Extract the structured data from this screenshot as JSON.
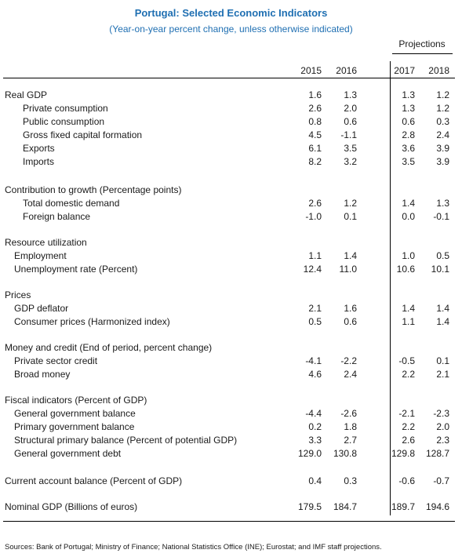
{
  "title": "Portugal: Selected Economic Indicators",
  "subtitle": "(Year-on-year percent change, unless otherwise indicated)",
  "projections_label": "Projections",
  "years": [
    "2015",
    "2016",
    "2017",
    "2018"
  ],
  "rows": [
    {
      "label": "Real GDP",
      "level": 0,
      "values": [
        "1.6",
        "1.3",
        "1.3",
        "1.2"
      ]
    },
    {
      "label": "Private consumption",
      "level": 2,
      "values": [
        "2.6",
        "2.0",
        "1.3",
        "1.2"
      ]
    },
    {
      "label": "Public consumption",
      "level": 2,
      "values": [
        "0.8",
        "0.6",
        "0.6",
        "0.3"
      ]
    },
    {
      "label": "Gross fixed capital formation",
      "level": 2,
      "values": [
        "4.5",
        "-1.1",
        "2.8",
        "2.4"
      ]
    },
    {
      "label": "Exports",
      "level": 2,
      "values": [
        "6.1",
        "3.5",
        "3.6",
        "3.9"
      ]
    },
    {
      "label": "Imports",
      "level": 2,
      "values": [
        "8.2",
        "3.2",
        "3.5",
        "3.9"
      ]
    },
    {
      "label": "Contribution to growth (Percentage points)",
      "level": 0,
      "values": [
        "",
        "",
        "",
        ""
      ]
    },
    {
      "label": "Total domestic demand",
      "level": 2,
      "values": [
        "2.6",
        "1.2",
        "1.4",
        "1.3"
      ]
    },
    {
      "label": "Foreign balance",
      "level": 2,
      "values": [
        "-1.0",
        "0.1",
        "0.0",
        "-0.1"
      ]
    },
    {
      "label": "Resource utilization",
      "level": 0,
      "values": [
        "",
        "",
        "",
        ""
      ]
    },
    {
      "label": "Employment",
      "level": 1,
      "values": [
        "1.1",
        "1.4",
        "1.0",
        "0.5"
      ]
    },
    {
      "label": "Unemployment rate (Percent)",
      "level": 1,
      "values": [
        "12.4",
        "11.0",
        "10.6",
        "10.1"
      ]
    },
    {
      "label": "Prices",
      "level": 0,
      "values": [
        "",
        "",
        "",
        ""
      ]
    },
    {
      "label": "GDP deflator",
      "level": 1,
      "values": [
        "2.1",
        "1.6",
        "1.4",
        "1.4"
      ]
    },
    {
      "label": "Consumer prices (Harmonized index)",
      "level": 1,
      "values": [
        "0.5",
        "0.6",
        "1.1",
        "1.4"
      ]
    },
    {
      "label": "Money and credit (End of period, percent change)",
      "level": 0,
      "values": [
        "",
        "",
        "",
        ""
      ]
    },
    {
      "label": "Private sector credit",
      "level": 1,
      "values": [
        "-4.1",
        "-2.2",
        "-0.5",
        "0.1"
      ]
    },
    {
      "label": "Broad money",
      "level": 1,
      "values": [
        "4.6",
        "2.4",
        "2.2",
        "2.1"
      ]
    },
    {
      "label": "Fiscal indicators (Percent of GDP)",
      "level": 0,
      "values": [
        "",
        "",
        "",
        ""
      ]
    },
    {
      "label": "General government balance",
      "level": 1,
      "values": [
        "-4.4",
        "-2.6",
        "-2.1",
        "-2.3"
      ]
    },
    {
      "label": "Primary government balance",
      "level": 1,
      "values": [
        "0.2",
        "1.8",
        "2.2",
        "2.0"
      ]
    },
    {
      "label": "Structural primary balance (Percent of potential GDP)",
      "level": 1,
      "values": [
        "3.3",
        "2.7",
        "2.6",
        "2.3"
      ]
    },
    {
      "label": "General government debt",
      "level": 1,
      "values": [
        "129.0",
        "130.8",
        "129.8",
        "128.7"
      ]
    },
    {
      "label": "Current account balance (Percent of GDP)",
      "level": 0,
      "values": [
        "0.4",
        "0.3",
        "-0.6",
        "-0.7"
      ]
    },
    {
      "label": "Nominal GDP (Billions of euros)",
      "level": 0,
      "values": [
        "179.5",
        "184.7",
        "189.7",
        "194.6"
      ]
    }
  ],
  "source": "Sources: Bank of Portugal; Ministry of Finance; National Statistics Office (INE); Eurostat; and IMF staff projections."
}
